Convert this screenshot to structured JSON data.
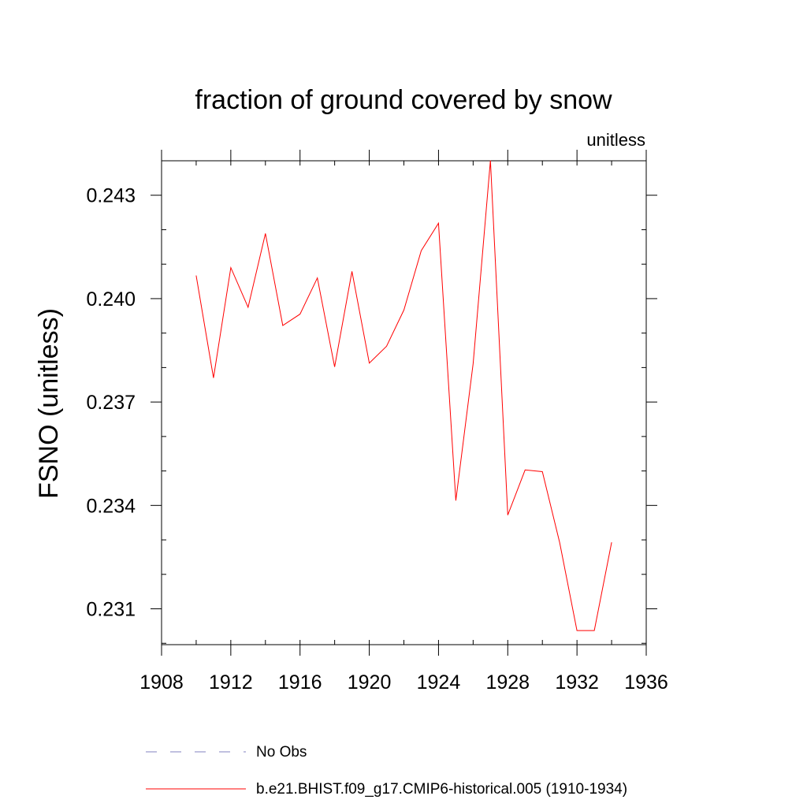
{
  "chart_data": {
    "type": "line",
    "title": "fraction of ground covered by snow",
    "units_label": "unitless",
    "ylabel": "FSNO  (unitless)",
    "xlabel": "",
    "xlim": [
      1908,
      1936
    ],
    "ylim": [
      0.22996,
      0.244
    ],
    "x_ticks": [
      1908,
      1912,
      1916,
      1920,
      1924,
      1928,
      1932,
      1936
    ],
    "x_minor_ticks": [
      1908,
      1910,
      1912,
      1914,
      1916,
      1918,
      1920,
      1922,
      1924,
      1926,
      1928,
      1930,
      1932,
      1934,
      1936
    ],
    "x_tick_labels": [
      "1908",
      "1912",
      "1916",
      "1920",
      "1924",
      "1928",
      "1932",
      "1936"
    ],
    "y_ticks": [
      0.231,
      0.234,
      0.237,
      0.24,
      0.243
    ],
    "y_tick_labels": [
      "0.231",
      "0.234",
      "0.237",
      "0.240",
      "0.243"
    ],
    "y_minor_step": 0.001,
    "grid": false,
    "legend_position": "bottom",
    "series": [
      {
        "name": "b.e21.BHIST.f09_g17.CMIP6-historical.005 (1910-1934)",
        "color": "#ff0000",
        "dash": "solid",
        "x": [
          1910,
          1911,
          1912,
          1913,
          1914,
          1915,
          1916,
          1917,
          1918,
          1919,
          1920,
          1921,
          1922,
          1923,
          1924,
          1925,
          1926,
          1927,
          1928,
          1929,
          1930,
          1931,
          1932,
          1933,
          1934
        ],
        "values": [
          0.24067,
          0.2377,
          0.2409,
          0.23975,
          0.24189,
          0.23922,
          0.23955,
          0.2406,
          0.23802,
          0.24079,
          0.23813,
          0.23862,
          0.23967,
          0.24139,
          0.24219,
          0.23414,
          0.23812,
          0.24401,
          0.23372,
          0.23503,
          0.23498,
          0.23292,
          0.23037,
          0.23037,
          0.23293
        ]
      }
    ],
    "legend": [
      {
        "label": "No Obs",
        "color": "#8080c0",
        "dash": "dashed"
      },
      {
        "label": "b.e21.BHIST.f09_g17.CMIP6-historical.005 (1910-1934)",
        "color": "#ff0000",
        "dash": "solid"
      }
    ]
  }
}
